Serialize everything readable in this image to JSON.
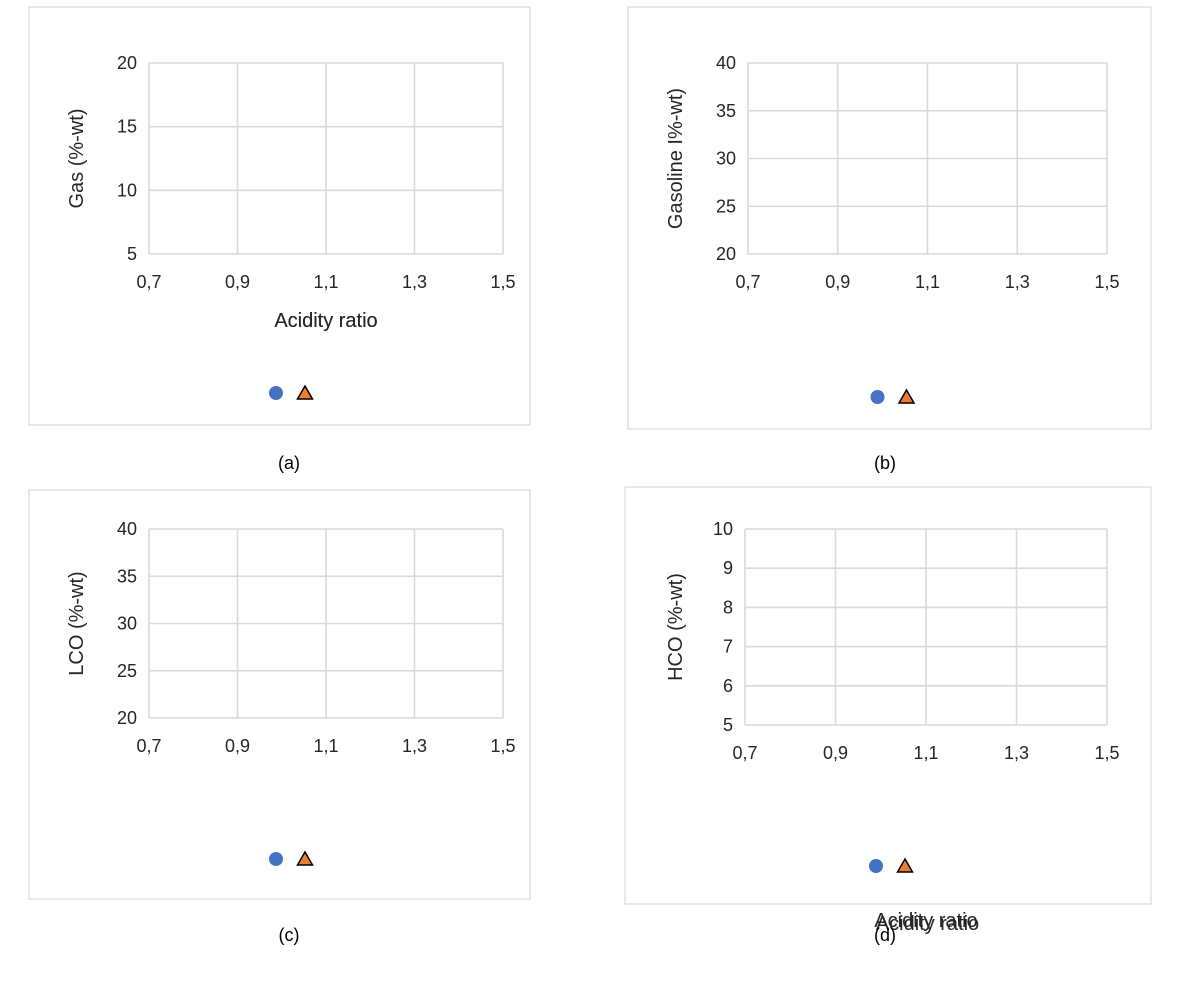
{
  "chart_data": [
    {
      "type": "scatter",
      "caption": "(a)",
      "xlabel": "Acidity ratio",
      "ylabel": "Gas (%-wt)",
      "xlim": [
        0.7,
        1.5
      ],
      "ylim": [
        5,
        20
      ],
      "xticks": [
        "0,7",
        "0,9",
        "1,1",
        "1,3",
        "1,5"
      ],
      "yticks": [
        "5",
        "10",
        "15",
        "20"
      ],
      "grid": true,
      "legend_position": "bottom",
      "series": [
        {
          "marker": "circle",
          "color": "#4472C4",
          "points": []
        },
        {
          "marker": "triangle",
          "color": "#ED7D31",
          "points": []
        }
      ]
    },
    {
      "type": "scatter",
      "caption": "(b)",
      "xlabel": "Acidity ratio",
      "ylabel": "Gasoline I%-wt)",
      "xlim": [
        0.7,
        1.5
      ],
      "ylim": [
        20,
        40
      ],
      "xticks": [
        "0,7",
        "0,9",
        "1,1",
        "1,3",
        "1,5"
      ],
      "yticks": [
        "20",
        "25",
        "30",
        "35",
        "40"
      ],
      "grid": true,
      "legend_position": "bottom",
      "series": [
        {
          "marker": "circle",
          "color": "#4472C4",
          "points": []
        },
        {
          "marker": "triangle",
          "color": "#ED7D31",
          "points": []
        }
      ]
    },
    {
      "type": "scatter",
      "caption": "(c)",
      "xlabel": "Acidity ratio",
      "ylabel": "LCO (%-wt)",
      "xlim": [
        0.7,
        1.5
      ],
      "ylim": [
        20,
        40
      ],
      "xticks": [
        "0,7",
        "0,9",
        "1,1",
        "1,3",
        "1,5"
      ],
      "yticks": [
        "20",
        "25",
        "30",
        "35",
        "40"
      ],
      "grid": true,
      "legend_position": "bottom",
      "series": [
        {
          "marker": "circle",
          "color": "#4472C4",
          "points": []
        },
        {
          "marker": "triangle",
          "color": "#ED7D31",
          "points": []
        }
      ]
    },
    {
      "type": "scatter",
      "caption": "(d)",
      "xlabel": "Acidity ratio",
      "ylabel": "HCO (%-wt)",
      "xlim": [
        0.7,
        1.5
      ],
      "ylim": [
        5,
        10
      ],
      "xticks": [
        "0,7",
        "0,9",
        "1,1",
        "1,3",
        "1,5"
      ],
      "yticks": [
        "5",
        "6",
        "7",
        "8",
        "9",
        "10"
      ],
      "grid": true,
      "legend_position": "bottom",
      "series": [
        {
          "marker": "circle",
          "color": "#4472C4",
          "points": []
        },
        {
          "marker": "triangle",
          "color": "#ED7D31",
          "points": []
        }
      ]
    }
  ]
}
